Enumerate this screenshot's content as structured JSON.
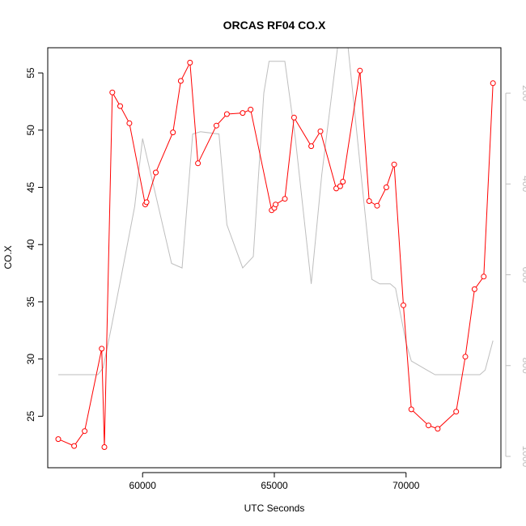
{
  "chart_data": {
    "type": "line",
    "title": "ORCAS RF04 CO.X",
    "xlabel": "UTC Seconds",
    "ylabel": "CO.X",
    "xlim": [
      56400,
      73600
    ],
    "ylim": [
      20.5,
      57.2
    ],
    "x_ticks": [
      60000,
      65000,
      70000
    ],
    "y_ticks": [
      25,
      30,
      35,
      40,
      45,
      50,
      55
    ],
    "secondary_axis": {
      "side": "right",
      "color": "#bebebe",
      "ticks": [
        200,
        400,
        600,
        800,
        1000
      ],
      "ylim_top_to_bottom": [
        100,
        1025
      ]
    },
    "series": [
      {
        "color": "#ff0000",
        "marker": "open-circle",
        "x": [
          56800,
          57400,
          57800,
          58450,
          58550,
          58850,
          59150,
          59500,
          60100,
          60150,
          60500,
          61150,
          61450,
          61800,
          62100,
          62800,
          63200,
          63800,
          64100,
          64900,
          65000,
          65050,
          65400,
          65750,
          66400,
          66750,
          67350,
          67500,
          67600,
          68250,
          68600,
          68900,
          69250,
          69550,
          69900,
          70200,
          70850,
          71200,
          71900,
          72250,
          72600,
          72950,
          73300
        ],
        "y": [
          23.0,
          22.4,
          23.7,
          30.9,
          22.3,
          53.3,
          52.1,
          50.6,
          43.5,
          43.7,
          46.3,
          49.8,
          54.3,
          55.9,
          47.1,
          50.4,
          51.4,
          51.5,
          51.8,
          43.0,
          43.2,
          43.5,
          44.0,
          51.1,
          48.6,
          49.9,
          44.9,
          45.1,
          45.5,
          55.2,
          43.8,
          43.4,
          45.0,
          47.0,
          34.7,
          25.6,
          24.2,
          23.9,
          25.4,
          30.2,
          36.1,
          37.2,
          54.1
        ]
      },
      {
        "color": "#bebebe",
        "axis": "right",
        "x": [
          56800,
          58300,
          58500,
          58800,
          59200,
          59700,
          60000,
          61100,
          61500,
          61900,
          62200,
          62900,
          63200,
          63800,
          64200,
          64600,
          64800,
          65400,
          65800,
          66400,
          66800,
          67400,
          67800,
          68400,
          68700,
          69000,
          69400,
          69600,
          70000,
          70200,
          70800,
          71100,
          71500,
          72000,
          72500,
          72800,
          73000,
          73300
        ],
        "y": [
          820,
          820,
          805,
          720,
          600,
          450,
          300,
          575,
          585,
          290,
          285,
          290,
          490,
          585,
          560,
          200,
          130,
          130,
          300,
          620,
          380,
          100,
          100,
          440,
          610,
          620,
          620,
          630,
          750,
          790,
          810,
          820,
          820,
          820,
          820,
          820,
          810,
          745
        ]
      }
    ]
  }
}
